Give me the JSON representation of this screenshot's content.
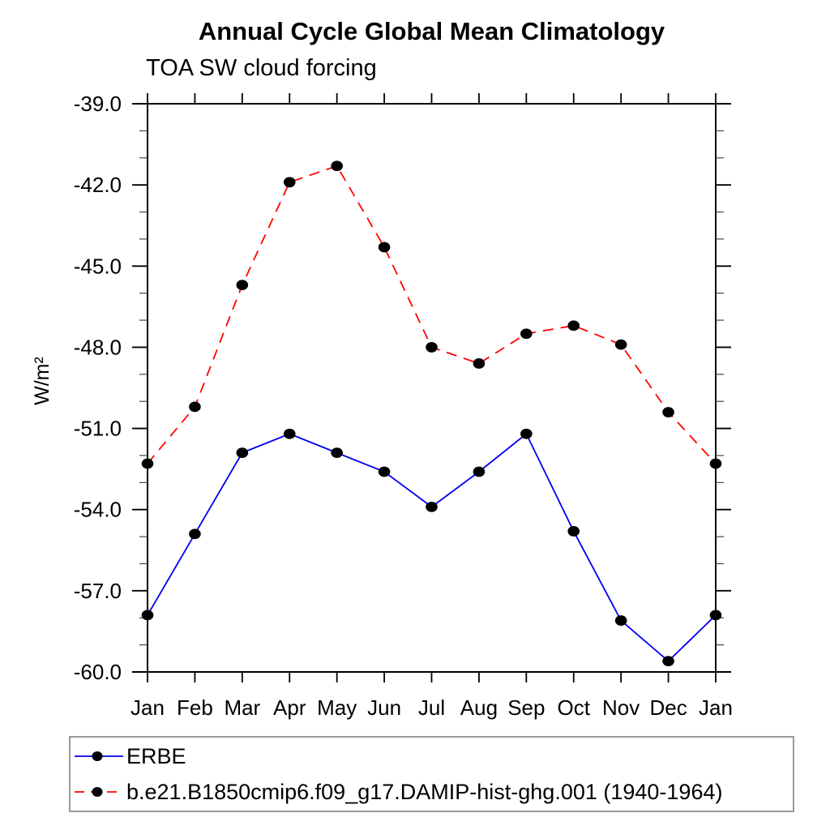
{
  "page": {
    "background": "#ffffff"
  },
  "chart_data": {
    "type": "line",
    "title": "Annual Cycle Global Mean Climatology",
    "subtitle": "TOA SW cloud forcing",
    "ylabel": "W/m²",
    "xlabel": "",
    "categories": [
      "Jan",
      "Feb",
      "Mar",
      "Apr",
      "May",
      "Jun",
      "Jul",
      "Aug",
      "Sep",
      "Oct",
      "Nov",
      "Dec",
      "Jan"
    ],
    "ylim": [
      -60,
      -39
    ],
    "y_major_ticks": [
      -39,
      -42,
      -45,
      -48,
      -51,
      -54,
      -57,
      -60
    ],
    "y_tick_labels": [
      "-39.0",
      "-42.0",
      "-45.0",
      "-48.0",
      "-51.0",
      "-54.0",
      "-57.0",
      "-60.0"
    ],
    "y_minor_step": 1,
    "grid": "off",
    "legend_position": "bottom",
    "axis_color": "#000000",
    "marker_color": "#000000",
    "series": [
      {
        "name": "ERBE",
        "color": "#0000ee",
        "line_style": "solid",
        "marker": "dot",
        "values": [
          -57.9,
          -54.9,
          -51.9,
          -51.2,
          -51.9,
          -52.6,
          -53.9,
          -52.6,
          -51.2,
          -54.8,
          -58.1,
          -59.6,
          -57.9
        ]
      },
      {
        "name": "b.e21.B1850cmip6.f09_g17.DAMIP-hist-ghg.001 (1940-1964)",
        "color": "#ff0000",
        "line_style": "dashed",
        "marker": "dot",
        "values": [
          -52.3,
          -50.2,
          -45.7,
          -41.9,
          -41.3,
          -44.3,
          -48.0,
          -48.6,
          -47.5,
          -47.2,
          -47.9,
          -50.4,
          -52.3
        ]
      }
    ]
  }
}
